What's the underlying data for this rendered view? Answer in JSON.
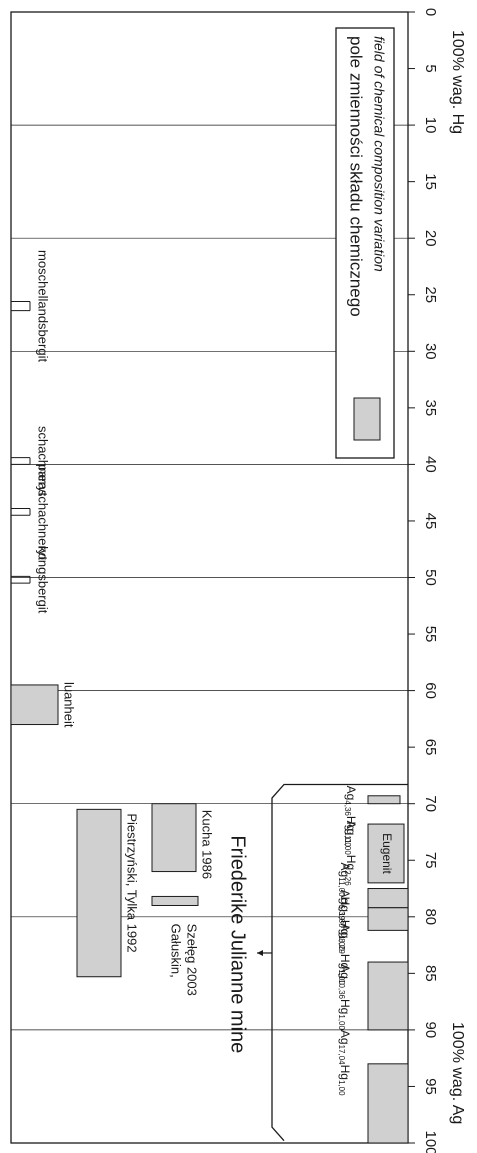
{
  "chart_data": {
    "type": "bar",
    "orientation": "rotated-90",
    "axis": {
      "unit_label_left": "100% wag. Ag",
      "unit_label_right": "100% wag. Hg",
      "ticks": [
        0,
        5,
        10,
        15,
        20,
        25,
        30,
        35,
        40,
        45,
        50,
        55,
        60,
        65,
        70,
        75,
        80,
        85,
        90,
        95,
        100
      ],
      "range": [
        0,
        100
      ],
      "gridlines": [
        10,
        20,
        30,
        40,
        50,
        60,
        70,
        80,
        90
      ]
    },
    "legend": {
      "position": "top-right",
      "text_pl": "pole zmienności składu chemicznego",
      "text_en": "field of chemical composition variation"
    },
    "minerals": [
      {
        "label": "moschellandsbergit",
        "hg_min": 25.6,
        "hg_max": 26.4
      },
      {
        "label": "schachneryt",
        "hg_min": 39.4,
        "hg_max": 40.0
      },
      {
        "label": "paraschachneryt",
        "hg_min": 43.9,
        "hg_max": 44.5
      },
      {
        "label": "kongsbergit",
        "hg_min": 49.9,
        "hg_max": 50.5
      },
      {
        "label": "luanheit",
        "hg_min": 59.5,
        "hg_max": 63.0
      }
    ],
    "literature": [
      {
        "label": "Piestrzyński, Tylka 1992",
        "hg_min": 70.5,
        "hg_max": 85.3
      },
      {
        "label": "Kucha 1986",
        "hg_min": 70.0,
        "hg_max": 76.0
      },
      {
        "label": "Gałuskin,",
        "label2": "Szełęg 2003",
        "hg_min": 78.2,
        "hg_max": 79.0
      }
    ],
    "mine": {
      "label": "Friederike Julianne mine",
      "phases": [
        {
          "label": "Ag4,36Hg1,00",
          "ag": "Ag",
          "ag_sub": "4,36",
          "hg": "Hg",
          "hg_sub": "1,00",
          "hg_min": 69.3,
          "hg_max": 70.0
        },
        {
          "label": "Ag11,00Hg2,26",
          "ag": "Ag",
          "ag_sub": "11,00",
          "hg": "Hg",
          "hg_sub": "2,26"
        },
        {
          "label": "Ag11,00Hg1,80",
          "ag": "Ag",
          "ag_sub": "11,00",
          "hg": "Hg",
          "hg_sub": "1,80"
        },
        {
          "label": "Ag6,39Hg1,00",
          "ag": "Ag",
          "ag_sub": "6,39",
          "hg": "Hg",
          "hg_sub": "1,00",
          "hg_min": 77.5,
          "hg_max": 79.2
        },
        {
          "label": "Ag8,29Hg1,00",
          "ag": "Ag",
          "ag_sub": "8,29",
          "hg": "Hg",
          "hg_sub": "1,00",
          "hg_min": 79.2,
          "hg_max": 81.2
        },
        {
          "label": "Ag10,36Hg1,00",
          "ag": "Ag",
          "ag_sub": "10,36",
          "hg": "Hg",
          "hg_sub": "1,00",
          "hg_min": 84.0,
          "hg_max": 90.0
        },
        {
          "label": "Ag17,04Hg1,00",
          "ag": "Ag",
          "ag_sub": "17,04",
          "hg": "Hg",
          "hg_sub": "1,00",
          "hg_min": 93.0,
          "hg_max": 100.0
        }
      ],
      "eugenit": {
        "label": "Eugenit",
        "hg_min": 71.8,
        "hg_max": 77.0
      }
    },
    "colors": {
      "fill": "#d0d0d0",
      "stroke": "#1a1a1a",
      "grid": "#1a1a1a"
    }
  }
}
